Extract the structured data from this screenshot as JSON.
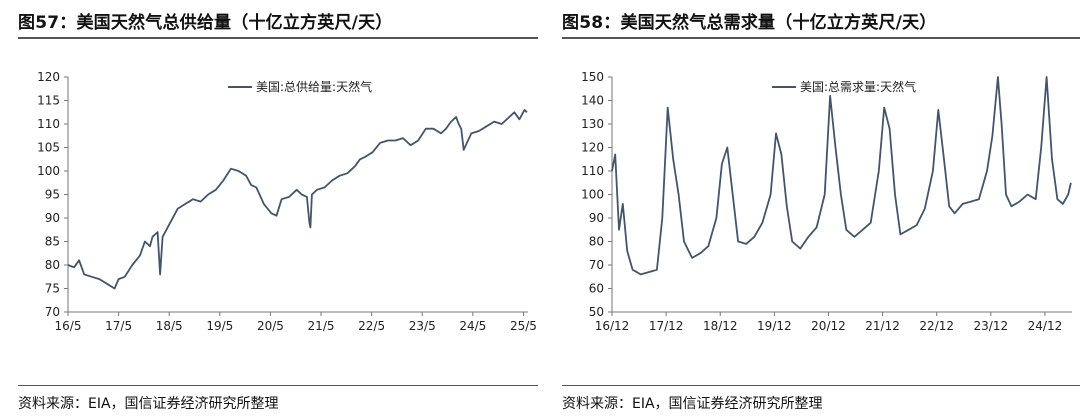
{
  "figures": [
    {
      "title": "图57：美国天然气总供给量（十亿立方英尺/天）",
      "source": "资料来源：EIA，国信证券经济研究所整理"
    },
    {
      "title": "图58：美国天然气总需求量（十亿立方英尺/天）",
      "source": "资料来源：EIA，国信证券经济研究所整理"
    }
  ],
  "chart_data": [
    {
      "type": "line",
      "title": "",
      "xlabel": "",
      "ylabel": "",
      "ylim": [
        70,
        120
      ],
      "yticks": [
        70,
        75,
        80,
        85,
        90,
        95,
        100,
        105,
        110,
        115,
        120
      ],
      "xlim": [
        2016.33,
        2025.42
      ],
      "xtick_labels": [
        "16/5",
        "17/5",
        "18/5",
        "19/5",
        "20/5",
        "21/5",
        "22/5",
        "23/5",
        "24/5",
        "25/5"
      ],
      "xtick_positions": [
        2016.33,
        2017.33,
        2018.33,
        2019.33,
        2020.33,
        2021.33,
        2022.33,
        2023.33,
        2024.33,
        2025.33
      ],
      "legend_position": "top-center",
      "series_color": "#44546a",
      "series": [
        {
          "name": "美国:总供给量:天然气",
          "x": [
            2016.33,
            2016.45,
            2016.55,
            2016.65,
            2016.8,
            2016.95,
            2017.1,
            2017.25,
            2017.33,
            2017.45,
            2017.6,
            2017.75,
            2017.85,
            2017.95,
            2018.0,
            2018.1,
            2018.15,
            2018.2,
            2018.25,
            2018.35,
            2018.5,
            2018.65,
            2018.8,
            2018.95,
            2019.1,
            2019.25,
            2019.4,
            2019.55,
            2019.7,
            2019.85,
            2019.95,
            2020.05,
            2020.2,
            2020.35,
            2020.45,
            2020.55,
            2020.7,
            2020.85,
            2020.95,
            2021.05,
            2021.1,
            2021.12,
            2021.15,
            2021.25,
            2021.4,
            2021.55,
            2021.7,
            2021.85,
            2022.0,
            2022.1,
            2022.2,
            2022.35,
            2022.5,
            2022.65,
            2022.8,
            2022.95,
            2023.1,
            2023.25,
            2023.4,
            2023.55,
            2023.7,
            2023.8,
            2023.9,
            2024.0,
            2024.05,
            2024.1,
            2024.15,
            2024.3,
            2024.45,
            2024.6,
            2024.75,
            2024.9,
            2025.05,
            2025.15,
            2025.25,
            2025.35,
            2025.4
          ],
          "values": [
            80,
            79.5,
            81,
            78,
            77.5,
            77,
            76,
            75,
            77,
            77.5,
            80,
            82,
            85,
            84,
            86,
            87,
            78,
            86,
            87,
            89,
            92,
            93,
            94,
            93.5,
            95,
            96,
            98,
            100.5,
            100,
            99,
            97,
            96.5,
            93,
            91,
            90.5,
            94,
            94.5,
            96,
            95,
            94.5,
            89,
            88,
            95,
            96,
            96.5,
            98,
            99,
            99.5,
            101,
            102.5,
            103,
            104,
            106,
            106.5,
            106.5,
            107,
            105.5,
            106.5,
            109,
            109,
            108,
            109,
            110.5,
            111.5,
            110,
            109,
            104.5,
            108,
            108.5,
            109.5,
            110.5,
            110,
            111.5,
            112.5,
            111,
            113,
            112.5
          ]
        }
      ]
    },
    {
      "type": "line",
      "title": "",
      "xlabel": "",
      "ylabel": "",
      "ylim": [
        50,
        150
      ],
      "yticks": [
        50,
        60,
        70,
        80,
        90,
        100,
        110,
        120,
        130,
        140,
        150
      ],
      "xlim": [
        2016.92,
        2025.42
      ],
      "xtick_labels": [
        "16/12",
        "17/12",
        "18/12",
        "19/12",
        "20/12",
        "21/12",
        "22/12",
        "23/12",
        "24/12"
      ],
      "xtick_positions": [
        2016.92,
        2017.92,
        2018.92,
        2019.92,
        2020.92,
        2021.92,
        2022.92,
        2023.92,
        2024.92
      ],
      "legend_position": "top-center",
      "series_color": "#44546a",
      "series": [
        {
          "name": "美国:总需求量:天然气",
          "x": [
            2016.92,
            2016.98,
            2017.05,
            2017.12,
            2017.2,
            2017.3,
            2017.45,
            2017.6,
            2017.75,
            2017.85,
            2017.95,
            2018.05,
            2018.15,
            2018.25,
            2018.4,
            2018.55,
            2018.7,
            2018.85,
            2018.95,
            2019.05,
            2019.15,
            2019.25,
            2019.4,
            2019.55,
            2019.7,
            2019.85,
            2019.95,
            2020.05,
            2020.15,
            2020.25,
            2020.4,
            2020.55,
            2020.7,
            2020.85,
            2020.95,
            2021.05,
            2021.15,
            2021.25,
            2021.4,
            2021.55,
            2021.7,
            2021.85,
            2021.95,
            2022.05,
            2022.15,
            2022.25,
            2022.4,
            2022.55,
            2022.7,
            2022.85,
            2022.95,
            2023.05,
            2023.15,
            2023.25,
            2023.4,
            2023.55,
            2023.7,
            2023.85,
            2023.95,
            2024.05,
            2024.12,
            2024.2,
            2024.3,
            2024.45,
            2024.6,
            2024.75,
            2024.85,
            2024.95,
            2025.05,
            2025.15,
            2025.25,
            2025.35,
            2025.4
          ],
          "values": [
            110,
            117,
            85,
            96,
            76,
            68,
            66,
            67,
            68,
            90,
            137,
            115,
            100,
            80,
            73,
            75,
            78,
            90,
            113,
            120,
            100,
            80,
            79,
            82,
            88,
            100,
            126,
            117,
            95,
            80,
            77,
            82,
            86,
            100,
            142,
            120,
            100,
            85,
            82,
            85,
            88,
            110,
            137,
            128,
            100,
            83,
            85,
            87,
            94,
            110,
            136,
            116,
            95,
            92,
            96,
            97,
            98,
            110,
            125,
            150,
            130,
            100,
            95,
            97,
            100,
            98,
            120,
            150,
            115,
            98,
            96,
            100,
            105
          ]
        }
      ]
    }
  ]
}
